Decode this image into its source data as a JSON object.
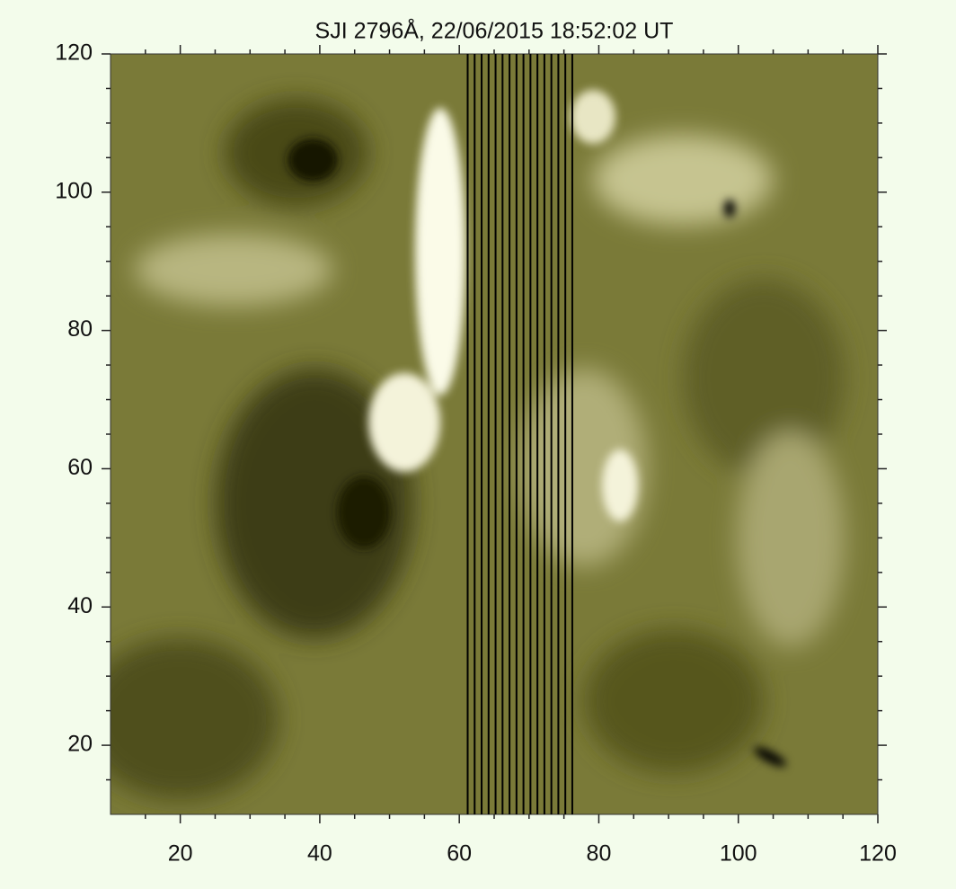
{
  "chart_data": {
    "type": "image",
    "title": "SJI 2796Å, 22/06/2015 18:52:02 UT",
    "xlim": [
      10,
      120
    ],
    "ylim": [
      10,
      120
    ],
    "xticks": [
      20,
      40,
      60,
      80,
      100,
      120
    ],
    "yticks": [
      20,
      40,
      60,
      80,
      100,
      120
    ],
    "xminorticks": [
      15,
      25,
      30,
      35,
      45,
      50,
      55,
      65,
      70,
      75,
      85,
      90,
      95,
      105,
      110,
      115
    ],
    "yminorticks": [
      15,
      25,
      30,
      35,
      45,
      50,
      55,
      65,
      70,
      75,
      85,
      90,
      95,
      105,
      110,
      115
    ],
    "slit_x": [
      61.2,
      62.2,
      63.2,
      64.2,
      65.2,
      66.2,
      67.2,
      68.2,
      69.2,
      70.2,
      71.2,
      72.2,
      73.2,
      74.2,
      75.2,
      76.2
    ],
    "slit_color": "#000000"
  }
}
